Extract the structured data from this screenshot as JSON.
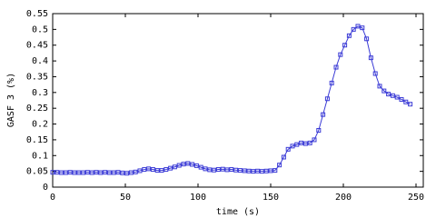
{
  "chart_data": {
    "type": "line",
    "xlabel": "time (s)",
    "ylabel": "GASF 3 (%)",
    "x": [
      0,
      3,
      6,
      9,
      12,
      15,
      18,
      21,
      24,
      27,
      30,
      33,
      36,
      39,
      42,
      45,
      48,
      51,
      54,
      57,
      60,
      63,
      66,
      69,
      72,
      75,
      78,
      81,
      84,
      87,
      90,
      93,
      96,
      99,
      102,
      105,
      108,
      111,
      114,
      117,
      120,
      123,
      126,
      129,
      132,
      135,
      138,
      141,
      144,
      147,
      150,
      153,
      156,
      159,
      162,
      165,
      168,
      171,
      174,
      177,
      180,
      183,
      186,
      189,
      192,
      195,
      198,
      201,
      204,
      207,
      210,
      213,
      216,
      219,
      222,
      225,
      228,
      231,
      234,
      237,
      240,
      243,
      246
    ],
    "values": [
      0.047,
      0.047,
      0.046,
      0.046,
      0.047,
      0.046,
      0.046,
      0.046,
      0.047,
      0.046,
      0.047,
      0.046,
      0.047,
      0.046,
      0.046,
      0.047,
      0.045,
      0.044,
      0.046,
      0.048,
      0.052,
      0.056,
      0.058,
      0.056,
      0.053,
      0.053,
      0.056,
      0.06,
      0.064,
      0.069,
      0.073,
      0.075,
      0.072,
      0.068,
      0.063,
      0.058,
      0.055,
      0.054,
      0.056,
      0.057,
      0.055,
      0.056,
      0.054,
      0.053,
      0.052,
      0.051,
      0.05,
      0.051,
      0.05,
      0.051,
      0.052,
      0.053,
      0.07,
      0.095,
      0.12,
      0.13,
      0.135,
      0.14,
      0.138,
      0.14,
      0.15,
      0.18,
      0.23,
      0.28,
      0.33,
      0.38,
      0.42,
      0.45,
      0.48,
      0.5,
      0.51,
      0.505,
      0.47,
      0.41,
      0.36,
      0.32,
      0.305,
      0.295,
      0.29,
      0.285,
      0.278,
      0.27,
      0.263
    ],
    "color": "#3b3bd6",
    "xlim": [
      0,
      255
    ],
    "xticks": [
      0,
      50,
      100,
      150,
      200,
      250
    ],
    "ylim": [
      0,
      0.55
    ],
    "yticks": [
      0,
      0.05,
      0.1,
      0.15,
      0.2,
      0.25,
      0.3,
      0.35,
      0.4,
      0.45,
      0.5,
      0.55
    ],
    "grid": false
  }
}
